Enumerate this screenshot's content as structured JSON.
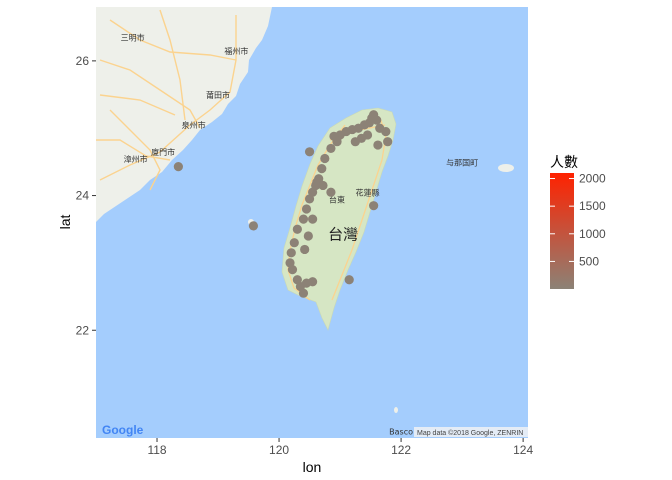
{
  "map": {
    "lon_range": [
      117.0,
      124.08
    ],
    "lat_range": [
      20.4,
      26.8
    ],
    "water_color": "#a4cdfd",
    "land_color": "#eef0ea",
    "island_color": "#d6e6c4",
    "road_color": "#fbd38f",
    "attribution": "Map data ©2018 Google, ZENRIN",
    "google_logo": "Google",
    "big_label": {
      "text": "台灣",
      "lon": 121.05,
      "lat": 23.35
    },
    "place_labels": [
      {
        "text": "三明市",
        "lon": 117.6,
        "lat": 26.3
      },
      {
        "text": "福州市",
        "lon": 119.3,
        "lat": 26.1
      },
      {
        "text": "莆田市",
        "lon": 119.0,
        "lat": 25.45
      },
      {
        "text": "泉州市",
        "lon": 118.6,
        "lat": 25.0
      },
      {
        "text": "廈門市",
        "lon": 118.1,
        "lat": 24.6
      },
      {
        "text": "漳州市",
        "lon": 117.65,
        "lat": 24.5
      },
      {
        "text": "花蓮縣",
        "lon": 121.45,
        "lat": 24.0
      },
      {
        "text": "台東",
        "lon": 120.95,
        "lat": 23.9
      },
      {
        "text": "与那国町",
        "lon": 123.0,
        "lat": 24.45
      },
      {
        "text": "Basco",
        "lon": 122.0,
        "lat": 20.45
      }
    ]
  },
  "axes": {
    "xlabel": "lon",
    "ylabel": "lat",
    "x_ticks": [
      118,
      120,
      122,
      124
    ],
    "y_ticks": [
      22,
      24,
      26
    ]
  },
  "legend": {
    "title": "人數",
    "breaks": [
      500,
      1000,
      1500,
      2000
    ],
    "range": [
      1,
      2100
    ],
    "low_color": "#8c8276",
    "high_color": "#ff2200"
  },
  "chart_data": {
    "type": "scatter",
    "title": "",
    "xlabel": "lon",
    "ylabel": "lat",
    "xlim": [
      117.0,
      124.08
    ],
    "ylim": [
      20.4,
      26.8
    ],
    "color_by": "人數",
    "points": [
      [
        118.35,
        24.43
      ],
      [
        119.58,
        23.55
      ],
      [
        121.55,
        25.2
      ],
      [
        121.52,
        25.15
      ],
      [
        121.6,
        25.12
      ],
      [
        121.48,
        25.08
      ],
      [
        121.4,
        25.05
      ],
      [
        121.3,
        25.0
      ],
      [
        121.2,
        24.98
      ],
      [
        121.1,
        24.95
      ],
      [
        121.0,
        24.9
      ],
      [
        120.9,
        24.88
      ],
      [
        121.65,
        25.0
      ],
      [
        121.75,
        24.95
      ],
      [
        121.78,
        24.8
      ],
      [
        121.62,
        24.75
      ],
      [
        121.45,
        24.9
      ],
      [
        120.95,
        24.8
      ],
      [
        120.85,
        24.7
      ],
      [
        120.75,
        24.55
      ],
      [
        120.7,
        24.4
      ],
      [
        120.65,
        24.25
      ],
      [
        120.6,
        24.15
      ],
      [
        120.55,
        24.05
      ],
      [
        120.5,
        23.95
      ],
      [
        120.45,
        23.8
      ],
      [
        120.4,
        23.65
      ],
      [
        120.3,
        23.5
      ],
      [
        120.25,
        23.3
      ],
      [
        120.2,
        23.15
      ],
      [
        120.18,
        23.0
      ],
      [
        120.22,
        22.9
      ],
      [
        120.3,
        22.75
      ],
      [
        120.35,
        22.65
      ],
      [
        120.4,
        22.55
      ],
      [
        120.45,
        22.7
      ],
      [
        120.55,
        22.72
      ],
      [
        120.62,
        24.2
      ],
      [
        120.72,
        24.15
      ],
      [
        120.85,
        24.05
      ],
      [
        121.55,
        23.85
      ],
      [
        121.15,
        22.75
      ],
      [
        120.48,
        23.4
      ],
      [
        120.42,
        23.2
      ],
      [
        120.5,
        24.65
      ],
      [
        120.55,
        23.65
      ],
      [
        121.35,
        24.85
      ],
      [
        121.25,
        24.8
      ]
    ]
  }
}
